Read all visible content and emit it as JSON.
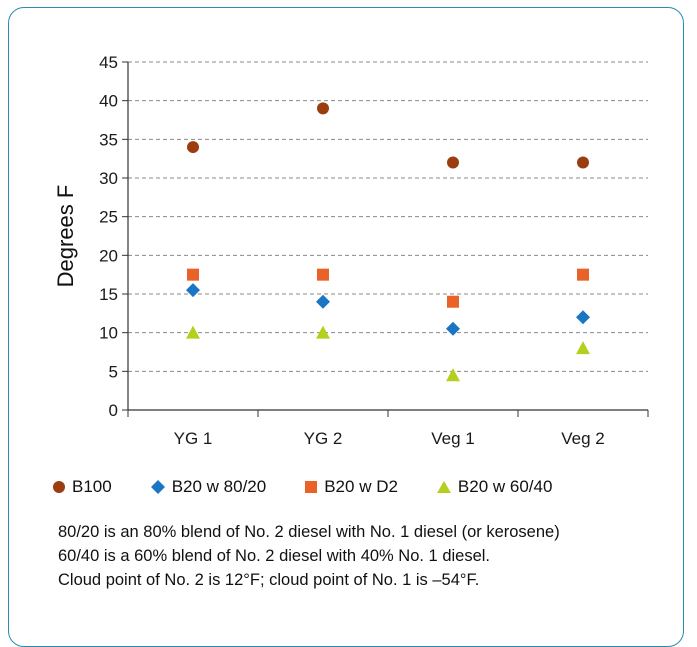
{
  "chart_data": {
    "type": "scatter",
    "categories": [
      "YG 1",
      "YG 2",
      "Veg 1",
      "Veg 2"
    ],
    "ylabel": "Degrees F",
    "xlabel": "",
    "ylim": [
      0,
      45
    ],
    "yticks": [
      0,
      5,
      10,
      15,
      20,
      25,
      30,
      35,
      40,
      45
    ],
    "grid": "horizontal dashed",
    "legend_position": "bottom",
    "series": [
      {
        "name": "B100",
        "marker": "circle",
        "color": "#9c3d10",
        "values": [
          34,
          39,
          32,
          32
        ]
      },
      {
        "name": "B20 w 80/20",
        "marker": "diamond",
        "color": "#1a75c4",
        "values": [
          15.5,
          14,
          10.5,
          12
        ]
      },
      {
        "name": "B20 w D2",
        "marker": "square",
        "color": "#e8622a",
        "values": [
          17.5,
          17.5,
          14,
          17.5
        ]
      },
      {
        "name": "B20 w 60/40",
        "marker": "triangle",
        "color": "#b5cf1c",
        "values": [
          10,
          10,
          4.5,
          8
        ]
      }
    ]
  },
  "notes": [
    "80/20 is an 80% blend of No. 2 diesel with No. 1 diesel (or kerosene)",
    "60/40 is a 60% blend of No. 2 diesel with 40% No. 1 diesel.",
    "Cloud point of No. 2 is 12°F; cloud point of No. 1 is –54°F."
  ]
}
